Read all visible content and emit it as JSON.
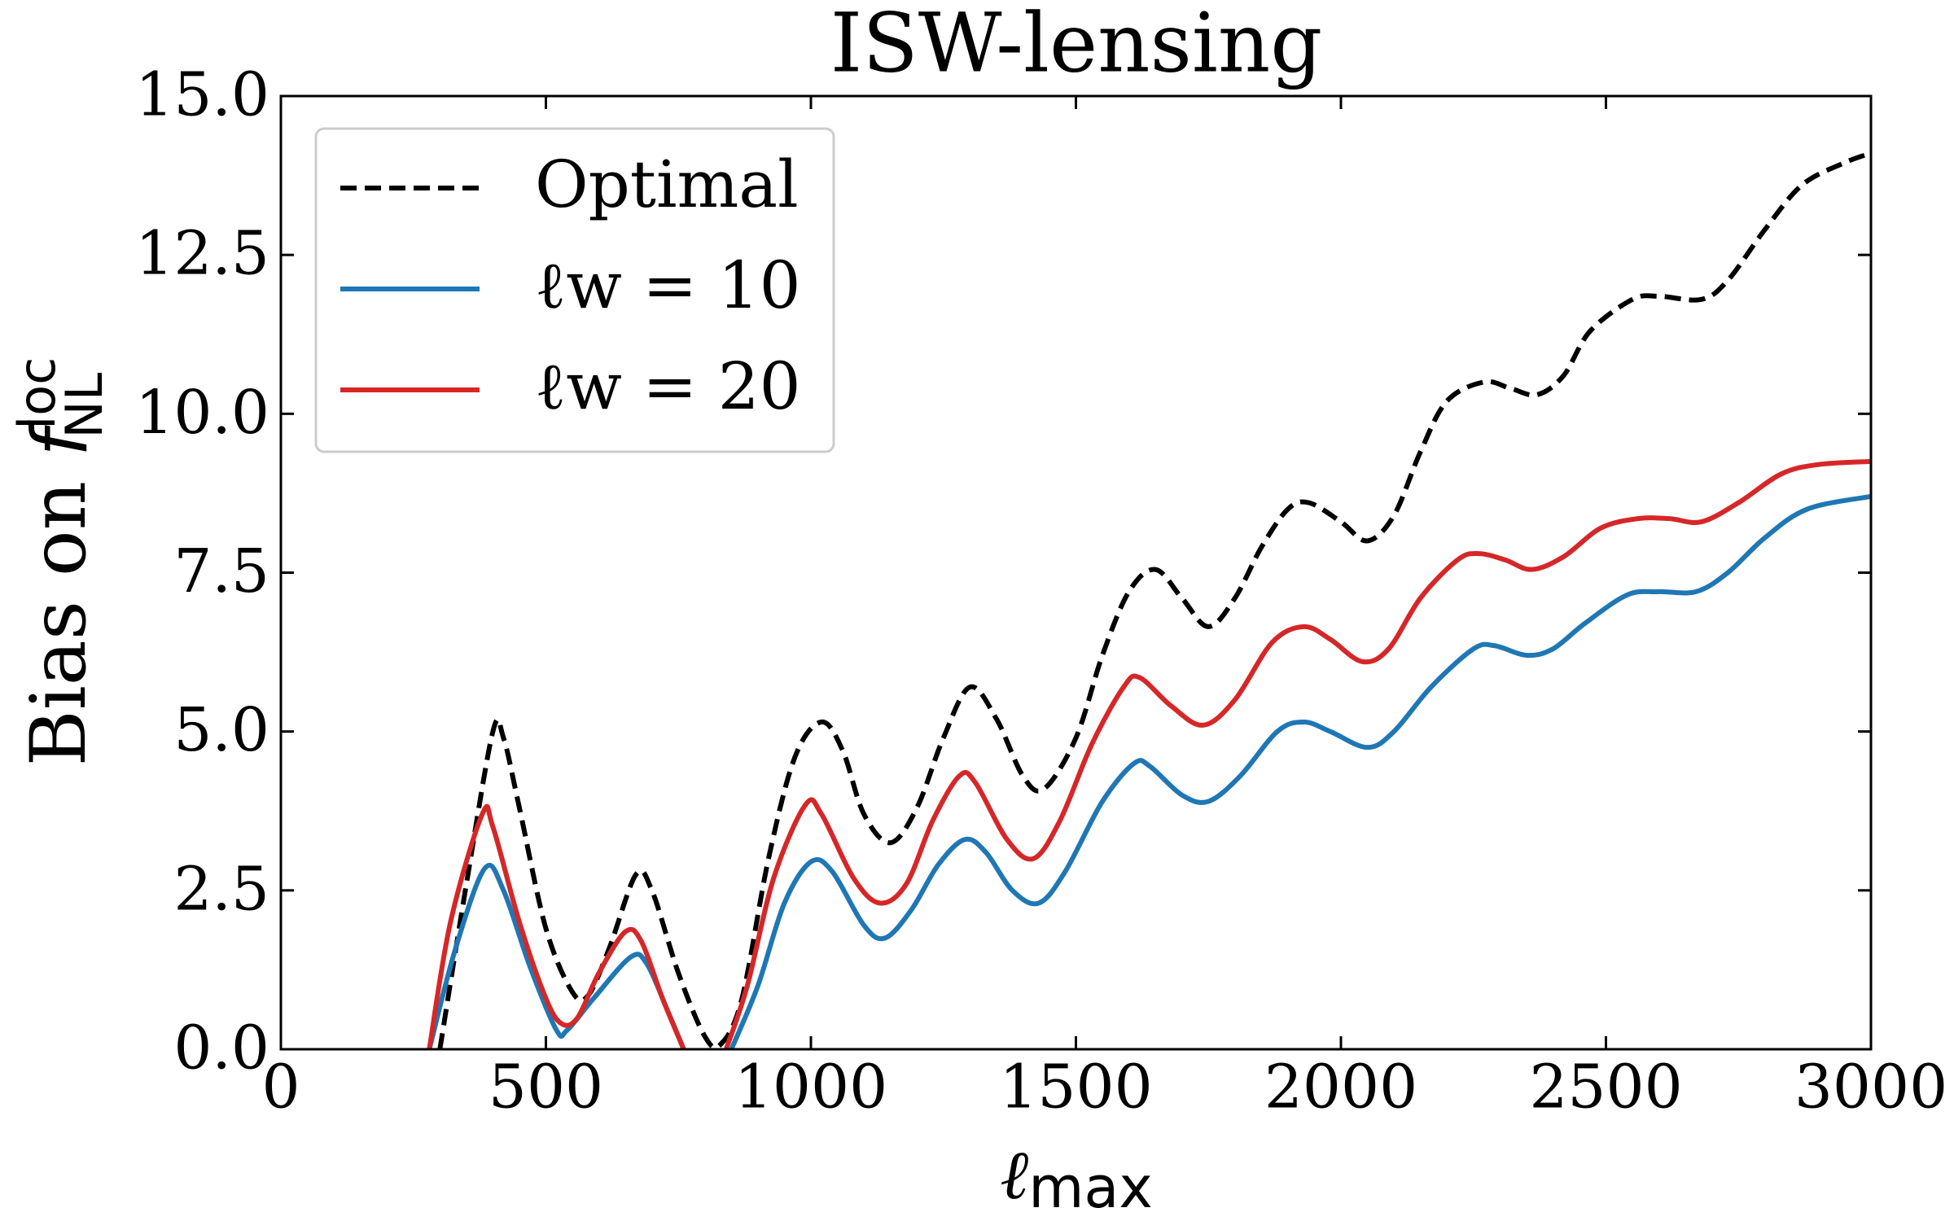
{
  "chart_data": {
    "type": "line",
    "title": "ISW-lensing",
    "x_label": {
      "symbol": "ℓ",
      "sub": "max"
    },
    "y_label": {
      "text": "Bias on ",
      "symbol": "f",
      "sup": "loc",
      "sub": "NL"
    },
    "xlim": [
      0,
      3000
    ],
    "xticks": [
      0,
      500,
      1000,
      1500,
      2000,
      2500,
      3000
    ],
    "ylim": [
      0,
      15
    ],
    "yticks": [
      {
        "value": 0,
        "label": "0.0"
      },
      {
        "value": 2.5,
        "label": "2.5"
      },
      {
        "value": 5,
        "label": "5.0"
      },
      {
        "value": 7.5,
        "label": "7.5"
      },
      {
        "value": 10,
        "label": "10.0"
      },
      {
        "value": 12.5,
        "label": "12.5"
      },
      {
        "value": 15,
        "label": "15.0"
      }
    ],
    "legend": "upper left",
    "grid": false,
    "series": [
      {
        "name": "Optimal",
        "color": "#000000",
        "dash": true,
        "x": [
          300,
          350,
          400,
          420,
          450,
          500,
          550,
          580,
          620,
          670,
          700,
          750,
          800,
          830,
          870,
          920,
          970,
          1020,
          1060,
          1100,
          1150,
          1200,
          1250,
          1300,
          1350,
          1400,
          1440,
          1500,
          1550,
          1600,
          1650,
          1700,
          1750,
          1800,
          1850,
          1900,
          1940,
          2000,
          2050,
          2100,
          2150,
          2200,
          2270,
          2320,
          2370,
          2420,
          2470,
          2550,
          2600,
          2680,
          2730,
          2800,
          2870,
          2950,
          3000
        ],
        "values": [
          0,
          2.6,
          5.0,
          4.9,
          3.8,
          1.9,
          0.9,
          0.85,
          1.6,
          2.75,
          2.5,
          1.2,
          0.2,
          0.08,
          0.8,
          3.0,
          4.6,
          5.15,
          4.7,
          3.7,
          3.25,
          3.8,
          4.9,
          5.7,
          5.2,
          4.3,
          4.1,
          4.9,
          6.2,
          7.2,
          7.55,
          7.1,
          6.65,
          7.1,
          7.9,
          8.5,
          8.6,
          8.3,
          8.0,
          8.4,
          9.4,
          10.2,
          10.5,
          10.4,
          10.3,
          10.6,
          11.3,
          11.8,
          11.85,
          11.8,
          12.1,
          12.9,
          13.6,
          13.95,
          14.1
        ]
      },
      {
        "name": "ℓw = 10",
        "color": "#1f77b4",
        "x": [
          280,
          330,
          385,
          420,
          470,
          520,
          540,
          590,
          660,
          690,
          730,
          760,
          800,
          850,
          900,
          950,
          1000,
          1040,
          1100,
          1140,
          1190,
          1240,
          1290,
          1330,
          1380,
          1430,
          1480,
          1550,
          1610,
          1640,
          1700,
          1750,
          1810,
          1880,
          1930,
          1980,
          2050,
          2100,
          2170,
          2250,
          2290,
          2350,
          2400,
          2460,
          2540,
          2600,
          2670,
          2730,
          2800,
          2880,
          3000
        ],
        "values": [
          0,
          1.6,
          2.85,
          2.5,
          1.3,
          0.3,
          0.3,
          0.8,
          1.45,
          1.35,
          0.6,
          0,
          null,
          0,
          1.0,
          2.3,
          2.95,
          2.8,
          1.95,
          1.75,
          2.2,
          2.9,
          3.3,
          3.1,
          2.5,
          2.3,
          2.8,
          3.9,
          4.5,
          4.45,
          4.0,
          3.9,
          4.3,
          5.0,
          5.15,
          5.0,
          4.75,
          5.0,
          5.7,
          6.3,
          6.35,
          6.2,
          6.3,
          6.7,
          7.15,
          7.2,
          7.2,
          7.5,
          8.05,
          8.5,
          8.7
        ]
      },
      {
        "name": "ℓw = 20",
        "color": "#d62728",
        "x": [
          280,
          320,
          380,
          400,
          450,
          500,
          530,
          560,
          600,
          650,
          680,
          720,
          760,
          800,
          840,
          880,
          930,
          990,
          1020,
          1080,
          1130,
          1180,
          1230,
          1280,
          1310,
          1370,
          1420,
          1470,
          1530,
          1590,
          1620,
          1680,
          1740,
          1800,
          1870,
          1930,
          1980,
          2040,
          2090,
          2150,
          2220,
          2260,
          2310,
          2360,
          2420,
          2490,
          2560,
          2620,
          2680,
          2750,
          2830,
          2900,
          3000
        ],
        "values": [
          0,
          2.0,
          3.7,
          3.5,
          2.0,
          0.8,
          0.4,
          0.5,
          1.2,
          1.85,
          1.7,
          0.8,
          0,
          null,
          0,
          1.0,
          2.7,
          3.85,
          3.7,
          2.7,
          2.3,
          2.6,
          3.6,
          4.3,
          4.2,
          3.3,
          3.0,
          3.6,
          4.8,
          5.7,
          5.85,
          5.4,
          5.1,
          5.5,
          6.4,
          6.65,
          6.45,
          6.1,
          6.3,
          7.1,
          7.7,
          7.8,
          7.7,
          7.55,
          7.75,
          8.2,
          8.35,
          8.35,
          8.3,
          8.6,
          9.05,
          9.2,
          9.25
        ]
      }
    ]
  }
}
